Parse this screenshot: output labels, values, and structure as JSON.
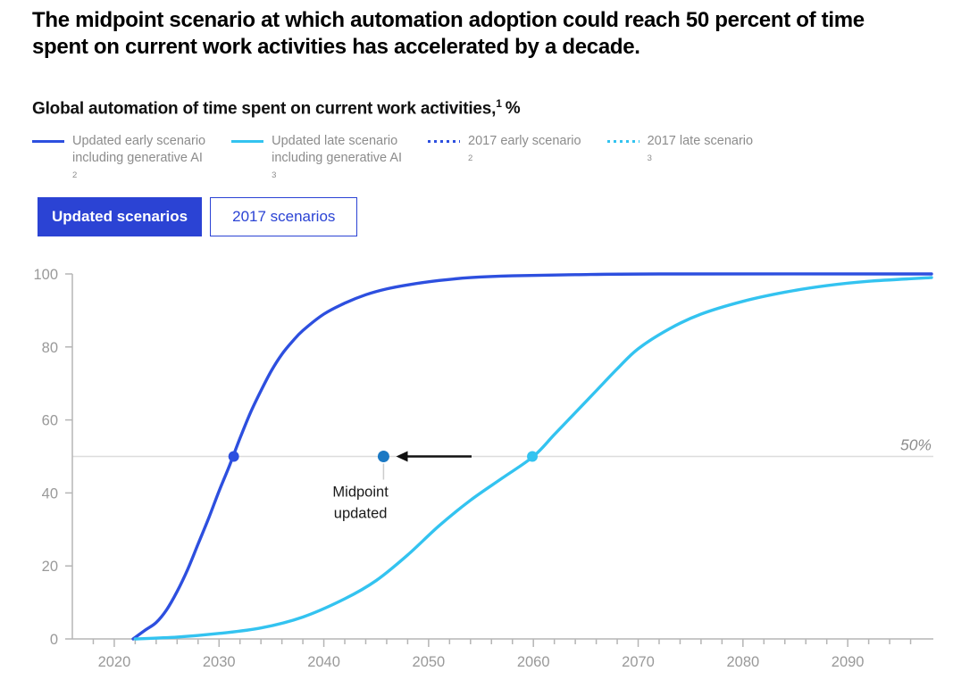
{
  "header": {
    "title": "The midpoint scenario at which automation adoption could reach 50 percent of time spent on current work activities has accelerated by a decade.",
    "subtitle_text": "Global automation of time spent on current work activities,",
    "subtitle_sup": "1",
    "subtitle_suffix": "%"
  },
  "legend": {
    "items": [
      {
        "swatch": "solid",
        "color": "#2d4fdf",
        "line1": "Updated early scenario",
        "line1_sup": "",
        "line2": "including generative AI",
        "line2_sup": "2"
      },
      {
        "swatch": "solid",
        "color": "#33c3f0",
        "line1": "Updated late scenario",
        "line1_sup": "",
        "line2": "including generative AI",
        "line2_sup": "3"
      },
      {
        "swatch": "dotted",
        "color": "#2d4fdf",
        "line1": "2017 early scenario",
        "line1_sup": "2",
        "line2": "",
        "line2_sup": ""
      },
      {
        "swatch": "dotted",
        "color": "#33c3f0",
        "line1": "2017 late scenario",
        "line1_sup": "3",
        "line2": "",
        "line2_sup": ""
      }
    ]
  },
  "toggle": {
    "updated_label": "Updated scenarios",
    "y2017_label": "2017 scenarios",
    "active": "Updated scenarios"
  },
  "chart_data": {
    "type": "line",
    "title": "Global automation of time spent on current work activities, %",
    "xlabel": "",
    "ylabel": "%",
    "x_domain": [
      2016,
      2098
    ],
    "ylim": [
      0,
      100
    ],
    "y_ticks": [
      0,
      20,
      40,
      60,
      80,
      100
    ],
    "x_ticks": [
      2020,
      2030,
      2040,
      2050,
      2060,
      2070,
      2080,
      2090
    ],
    "x_minor_tick_step": 2,
    "grid": "reference line at 50 only",
    "legend_position": "top",
    "series": [
      {
        "name": "Updated early scenario including generative AI",
        "color": "#2d4fdf",
        "style": "solid",
        "points": [
          [
            2021.8,
            0
          ],
          [
            2023,
            2.5
          ],
          [
            2024,
            4.5
          ],
          [
            2025,
            8
          ],
          [
            2026,
            13
          ],
          [
            2027,
            19
          ],
          [
            2028,
            26
          ],
          [
            2029,
            33
          ],
          [
            2030,
            40.5
          ],
          [
            2031,
            47.5
          ],
          [
            2032,
            55
          ],
          [
            2033,
            62
          ],
          [
            2034,
            68
          ],
          [
            2035,
            73.5
          ],
          [
            2036,
            78
          ],
          [
            2037,
            81.5
          ],
          [
            2038,
            84.5
          ],
          [
            2040,
            89
          ],
          [
            2042,
            92
          ],
          [
            2044,
            94.3
          ],
          [
            2046,
            95.9
          ],
          [
            2048,
            97
          ],
          [
            2051,
            98.2
          ],
          [
            2054,
            99
          ],
          [
            2058,
            99.5
          ],
          [
            2064,
            99.8
          ],
          [
            2072,
            100
          ],
          [
            2098,
            100
          ]
        ]
      },
      {
        "name": "Updated late scenario including generative AI",
        "color": "#33c3f0",
        "style": "solid",
        "points": [
          [
            2022,
            0
          ],
          [
            2026,
            0.5
          ],
          [
            2030,
            1.5
          ],
          [
            2034,
            3
          ],
          [
            2038,
            6
          ],
          [
            2042,
            11
          ],
          [
            2045,
            16
          ],
          [
            2048,
            23
          ],
          [
            2051,
            31
          ],
          [
            2054,
            38
          ],
          [
            2057,
            44
          ],
          [
            2060,
            50
          ],
          [
            2062,
            56
          ],
          [
            2064,
            62
          ],
          [
            2066,
            68
          ],
          [
            2068,
            74
          ],
          [
            2070,
            79.5
          ],
          [
            2073,
            85
          ],
          [
            2076,
            89
          ],
          [
            2080,
            92.5
          ],
          [
            2084,
            95
          ],
          [
            2088,
            96.8
          ],
          [
            2092,
            98
          ],
          [
            2098,
            99
          ]
        ]
      }
    ],
    "markers": [
      {
        "name": "early-midpoint-dot",
        "year": 2031.4,
        "value": 50,
        "color": "#2d4fdf",
        "r": 6
      },
      {
        "name": "late-midpoint-dot",
        "year": 2059.9,
        "value": 50,
        "color": "#33c3f0",
        "r": 6
      }
    ],
    "midpoint_marker": {
      "name": "updated-midpoint-dot",
      "year": 2045.7,
      "value": 50,
      "color": "#1b79c4",
      "r": 6.5
    },
    "arrow": {
      "from_year": 2054.1,
      "to_year": 2046.9,
      "value": 50,
      "color": "#111111"
    },
    "annotation": {
      "lines": [
        "Midpoint",
        "updated"
      ],
      "year": 2043.5,
      "value": 39,
      "color": "#1a1a1a"
    },
    "reference_line": {
      "value": 50,
      "label": "50%",
      "line_color": "#dcdcdc",
      "label_color": "#8c8c8c"
    },
    "axis_color": "#b5b5b5",
    "tick_label_color": "#999999",
    "connector_color": "#cccccc"
  }
}
